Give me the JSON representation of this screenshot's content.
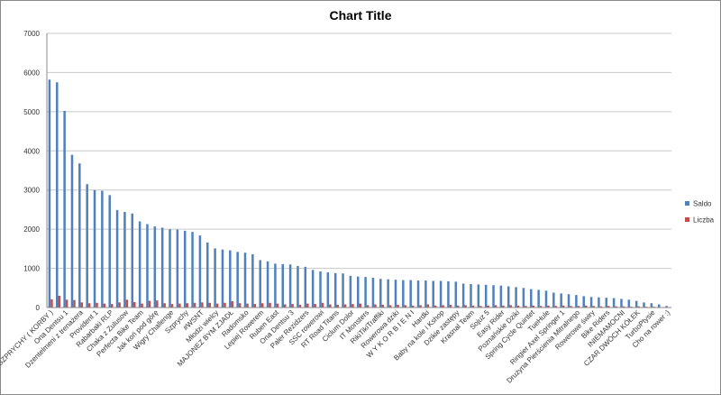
{
  "chart_data": {
    "type": "bar",
    "title": "Chart Title",
    "categories": [
      "SZPRYCHY ( KORBY )",
      null,
      "Ona Dentsu 1",
      null,
      "Dzentelmeni z trenażera",
      null,
      "Provident 1",
      null,
      "Rabarbaki RLP",
      null,
      "Chaka z Zulusow",
      null,
      "Perfecta Bike Team",
      null,
      "Jak koń pod górę",
      null,
      "Wigry Challenge",
      null,
      "Szprychy",
      null,
      "#WSNT",
      null,
      "Młodzi wielcy",
      null,
      "MAJONEZ BYM ZJADŁ",
      null,
      "Radomsko",
      null,
      "Lepiej Rowerem",
      null,
      "Ruben East",
      null,
      "Ona Dentsu 3",
      null,
      "Paler Rezidzers",
      null,
      "SSC rowerowi",
      null,
      "RT Road Titans",
      null,
      "Ciclum Dolor",
      null,
      "IT Monsters",
      null,
      "RikiTikiTraffiki",
      null,
      "Rowerowa dziki",
      null,
      "W Y K O R B I E N I",
      null,
      "Hardki",
      null,
      "Baby na kole i Kshop",
      null,
      "Dzikie zastępy",
      null,
      "Krasnal Team",
      null,
      "Sojuz 5",
      null,
      "Easy Rider",
      null,
      "Poznańskie Dziki",
      null,
      "Spring Cycle Quintet",
      null,
      "TueHule",
      null,
      "Ringier Axel Springer 1",
      null,
      "Drużyna Pierścienia Mitralnego",
      null,
      "Rowerowe świry",
      null,
      "Bike Riders",
      null,
      "INIEMAMOCNI",
      null,
      "CZAR DWÓCH KÓŁEK",
      null,
      "TurboPtysie",
      null,
      "Cho na rower :)"
    ],
    "series": [
      {
        "name": "Saldo",
        "color": "#4f81bd",
        "values": [
          5820,
          5750,
          5020,
          3900,
          3680,
          3150,
          3000,
          2980,
          2870,
          2490,
          2440,
          2400,
          2200,
          2130,
          2070,
          2040,
          2000,
          1990,
          1960,
          1930,
          1840,
          1660,
          1510,
          1480,
          1460,
          1420,
          1400,
          1360,
          1210,
          1180,
          1120,
          1110,
          1100,
          1060,
          1040,
          960,
          920,
          900,
          880,
          870,
          810,
          790,
          780,
          760,
          730,
          720,
          710,
          700,
          700,
          690,
          690,
          680,
          680,
          670,
          660,
          610,
          600,
          590,
          580,
          570,
          560,
          540,
          520,
          500,
          470,
          450,
          430,
          380,
          360,
          340,
          320,
          290,
          270,
          260,
          250,
          240,
          220,
          200,
          170,
          130,
          110,
          80,
          40
        ]
      },
      {
        "name": "Liczba",
        "color": "#c0504d",
        "values": [
          210,
          300,
          200,
          190,
          130,
          110,
          120,
          100,
          90,
          130,
          200,
          140,
          100,
          170,
          180,
          110,
          90,
          100,
          110,
          120,
          130,
          120,
          100,
          120,
          160,
          110,
          100,
          90,
          110,
          120,
          100,
          80,
          90,
          70,
          100,
          90,
          120,
          80,
          70,
          80,
          90,
          100,
          60,
          80,
          70,
          60,
          70,
          60,
          50,
          60,
          80,
          50,
          60,
          70,
          50,
          60,
          50,
          40,
          50,
          60,
          50,
          60,
          50,
          40,
          50,
          40,
          50,
          40,
          50,
          40,
          40,
          50,
          40,
          30,
          40,
          30,
          30,
          20,
          30,
          20,
          20,
          10,
          10
        ]
      }
    ],
    "ylim": [
      0,
      7000
    ],
    "yticks": [
      0,
      1000,
      2000,
      3000,
      4000,
      5000,
      6000,
      7000
    ],
    "grid": true,
    "legend": "right"
  }
}
